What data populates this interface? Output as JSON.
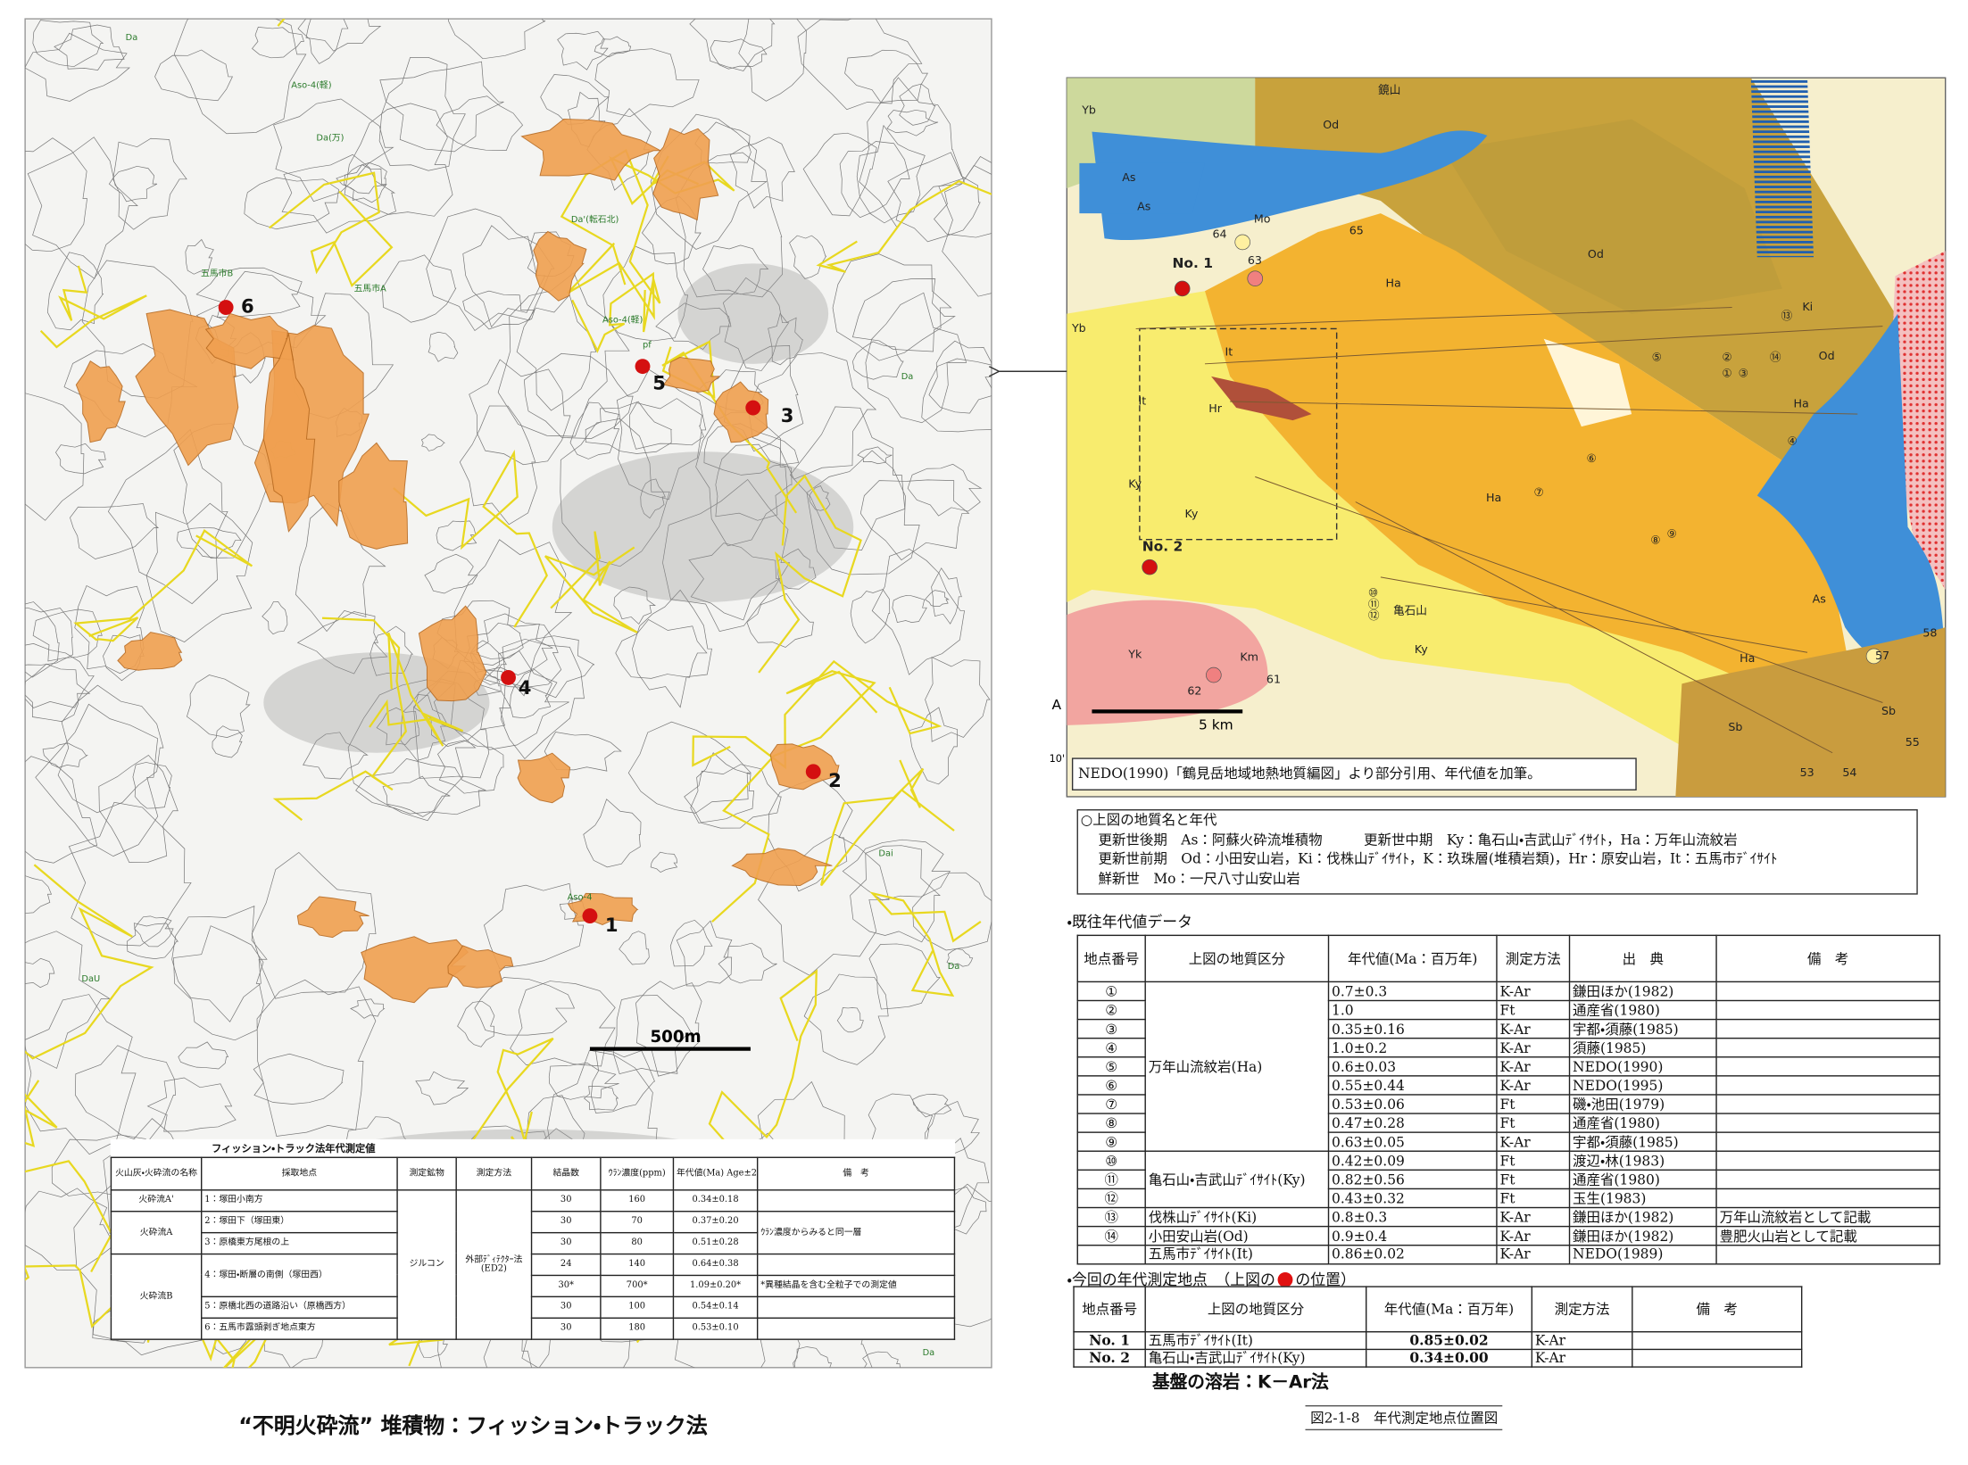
{
  "left_figure": {
    "map_labels": [
      "五馬市B",
      "五馬市A",
      "Da",
      "Aso-4(軽)",
      "Da(万)",
      "Da'(転石北)",
      "Aso-4(軽)",
      "pf",
      "Da",
      "Dai",
      "Da",
      "Aso-4",
      "DaU",
      "Da"
    ],
    "point_numbers": [
      "1",
      "2",
      "3",
      "4",
      "5",
      "6"
    ],
    "scale_label": "500m",
    "table": {
      "title": "フィッション・トラック法年代測定値",
      "headers": [
        "火山灰・火砕流の名称",
        "採取地点",
        "測定鉱物",
        "測定方法",
        "結晶数",
        "ｳﾗﾝ濃度(ppm)",
        "年代値(Ma) Age±2σ",
        "備　考"
      ],
      "rows": [
        {
          "name": "火砕流A'",
          "site": "1：塚田小南方",
          "mineral": "ジルコン",
          "method": "外部ﾃﾞｨﾃｸﾀｰ法(ED2)",
          "crystals": 30,
          "uranium": 160,
          "age": "0.34±0.18"
        },
        {
          "name": "火砕流A",
          "site": "2：塚田下（塚田東）",
          "crystals": 30,
          "uranium": 70,
          "age": "0.37±0.20",
          "note": "ｳﾗﾝ濃度からみると同一層"
        },
        {
          "site": "3：原橋東方尾根の上",
          "crystals": 30,
          "uranium": 80,
          "age": "0.51±0.28"
        },
        {
          "name": "火砕流B",
          "site": "4：塚田・断層の南側（塚田西）",
          "crystals": 24,
          "uranium": 140,
          "age": "0.64±0.38"
        },
        {
          "crystals": "30*",
          "uranium": "700*",
          "age": "1.09±0.20*",
          "note": "*異種結晶を含む全粒子での測定値"
        },
        {
          "site": "5：原橋北西の道路沿い（原橋西方）",
          "crystals": 30,
          "uranium": 100,
          "age": "0.54±0.14"
        },
        {
          "site": "6：五馬市露頭剥ぎ地点東方",
          "crystals": 30,
          "uranium": 180,
          "age": "0.53±0.10"
        }
      ]
    },
    "caption": "“不明火砕流” 堆積物：フィッション・トラック法"
  },
  "right_figure": {
    "map_labels": [
      "No. 1",
      "No. 2",
      "Ha",
      "Ha",
      "Ha",
      "Ha",
      "As",
      "As",
      "As",
      "Od",
      "Od",
      "Od",
      "Ky",
      "Ky",
      "Ky",
      "It",
      "It",
      "Yb",
      "Yb",
      "Yk",
      "Hr",
      "Km",
      "Mo",
      "Sb",
      "Sb",
      "Ki",
      "亀石山",
      "鏡山",
      "64",
      "63",
      "65",
      "62",
      "61",
      "57",
      "58",
      "53",
      "54",
      "55",
      "①",
      "②",
      "③",
      "④",
      "⑤",
      "⑥",
      "⑦",
      "⑧",
      "⑨",
      "⑩",
      "⑪",
      "⑫",
      "⑬",
      "⑭"
    ],
    "scale_label": "5 km",
    "edge_labels": [
      "A",
      "10'"
    ],
    "source_note": "NEDO(1990)「鶴見岳地域地熱地質編図」より部分引用、年代値を加筆。",
    "legend": {
      "title": "○上図の地質名と年代",
      "lines": [
        "更新世後期　As：阿蘇火砕流堆積物　　　更新世中期　Ky：亀石山・吉武山ﾃﾞｲｻｲﾄ，Ha：万年山流紋岩",
        "更新世前期　Od：小田安山岩，Ki：伐株山ﾃﾞｲｻｲﾄ，K：玖珠層(堆積岩類)，Hr：原安山岩，It：五馬市ﾃﾞｲｻｲﾄ",
        "鮮新世　Mo：一尺八寸山安山岩"
      ]
    },
    "existing_data": {
      "heading": "・既往年代値データ",
      "headers": [
        "地点番号",
        "上図の地質区分",
        "年代値(Ma：百万年)",
        "測定方法",
        "出　典",
        "備　考"
      ],
      "rows": [
        {
          "no": "①",
          "unit": "万年山流紋岩(Ha)",
          "age": "0.7±0.3",
          "method": "K-Ar",
          "source": "鎌田ほか(1982)"
        },
        {
          "no": "②",
          "age": "1.0",
          "method": "Ft",
          "source": "通産省(1980)"
        },
        {
          "no": "③",
          "age": "0.35±0.16",
          "method": "K-Ar",
          "source": "宇都・須藤(1985)"
        },
        {
          "no": "④",
          "age": "1.0±0.2",
          "method": "K-Ar",
          "source": "須藤(1985)"
        },
        {
          "no": "⑤",
          "age": "0.6±0.03",
          "method": "K-Ar",
          "source": "NEDO(1990)"
        },
        {
          "no": "⑥",
          "age": "0.55±0.44",
          "method": "K-Ar",
          "source": "NEDO(1995)"
        },
        {
          "no": "⑦",
          "age": "0.53±0.06",
          "method": "Ft",
          "source": "磯・池田(1979)"
        },
        {
          "no": "⑧",
          "age": "0.47±0.28",
          "method": "Ft",
          "source": "通産省(1980)"
        },
        {
          "no": "⑨",
          "age": "0.63±0.05",
          "method": "K-Ar",
          "source": "宇都・須藤(1985)"
        },
        {
          "no": "⑩",
          "unit": "亀石山・吉武山ﾃﾞｲｻｲﾄ(Ky)",
          "age": "0.42±0.09",
          "method": "Ft",
          "source": "渡辺・林(1983)"
        },
        {
          "no": "⑪",
          "age": "0.82±0.56",
          "method": "Ft",
          "source": "通産省(1980)"
        },
        {
          "no": "⑫",
          "age": "0.43±0.32",
          "method": "Ft",
          "source": "玉生(1983)"
        },
        {
          "no": "⑬",
          "unit": "伐株山ﾃﾞｲｻｲﾄ(Ki)",
          "age": "0.8±0.3",
          "method": "K-Ar",
          "source": "鎌田ほか(1982)",
          "note": "万年山流紋岩として記載"
        },
        {
          "no": "⑭",
          "unit": "小田安山岩(Od)",
          "age": "0.9±0.4",
          "method": "K-Ar",
          "source": "鎌田ほか(1982)",
          "note": "豊肥火山岩として記載"
        },
        {
          "unit": "五馬市ﾃﾞｲｻｲﾄ(It)",
          "age": "0.86±0.02",
          "method": "K-Ar",
          "source": "NEDO(1989)"
        }
      ]
    },
    "new_data": {
      "heading_before": "・今回の年代測定地点　（上図の",
      "heading_after": "の位置）",
      "headers": [
        "地点番号",
        "上図の地質区分",
        "年代値(Ma：百万年)",
        "測定方法",
        "備　考"
      ],
      "rows": [
        {
          "no": "No. 1",
          "unit": "五馬市ﾃﾞｲｻｲﾄ(It)",
          "age": "0.85±0.02",
          "method": "K-Ar"
        },
        {
          "no": "No. 2",
          "unit": "亀石山・吉武山ﾃﾞｲｻｲﾄ(Ky)",
          "age": "0.34±0.00",
          "method": "K-Ar"
        }
      ]
    },
    "basement_note": "基盤の溶岩：K－Ar法",
    "figure_caption": "図2-1-8　年代測定地点位置図"
  }
}
